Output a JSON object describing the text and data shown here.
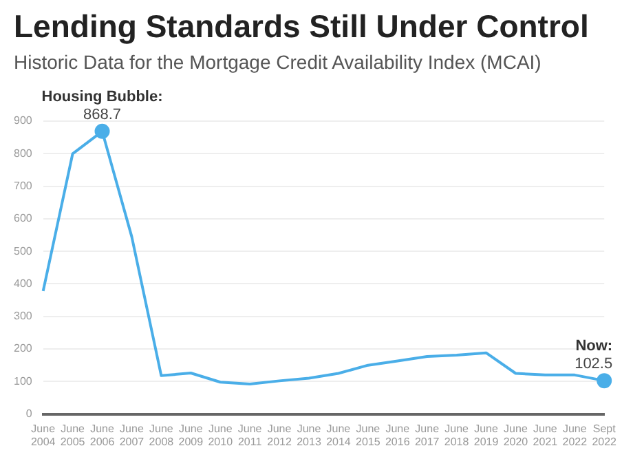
{
  "chart_data": {
    "type": "line",
    "title": "Lending Standards Still Under Control",
    "subtitle": "Historic Data for the Mortgage Credit Availability Index (MCAI)",
    "categories": [
      "June 2004",
      "June 2005",
      "June 2006",
      "June 2007",
      "June 2008",
      "June 2009",
      "June 2010",
      "June 2011",
      "June 2012",
      "June 2013",
      "June 2014",
      "June 2015",
      "June 2016",
      "June 2017",
      "June 2018",
      "June 2019",
      "June 2020",
      "June 2021",
      "June 2022",
      "Sept 2022"
    ],
    "series": [
      {
        "color": "#4aaee8",
        "values": [
          378,
          800,
          868.7,
          545,
          118,
          126,
          98,
          92,
          102,
          110,
          125,
          150,
          163,
          177,
          181,
          188,
          125,
          120,
          120,
          102.5
        ],
        "value_labels": [
          null,
          null,
          "868.7",
          null,
          null,
          null,
          null,
          null,
          null,
          null,
          null,
          null,
          null,
          null,
          null,
          null,
          null,
          null,
          null,
          "102.5"
        ]
      }
    ],
    "ylim": [
      0,
      900
    ],
    "yticks": [
      0,
      100,
      200,
      300,
      400,
      500,
      600,
      700,
      800,
      900
    ],
    "grid": "y",
    "legend": false,
    "annotations": [
      {
        "text": "Housing Bubble:",
        "x": "June 2006",
        "y": 868.7
      },
      {
        "text": "Now:",
        "x": "Sept 2022",
        "y": 102.5
      }
    ]
  }
}
